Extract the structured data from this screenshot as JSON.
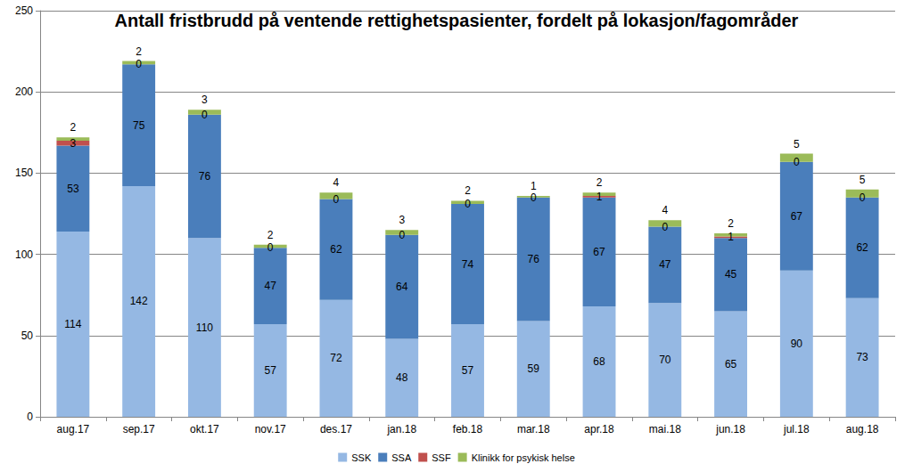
{
  "chart_data": {
    "type": "bar",
    "title": "Antall fristbrudd på ventende rettighetspasienter, fordelt på lokasjon/fagområder",
    "categories": [
      "aug.17",
      "sep.17",
      "okt.17",
      "nov.17",
      "des.17",
      "jan.18",
      "feb.18",
      "mar.18",
      "apr.18",
      "mai.18",
      "jun.18",
      "jul.18",
      "aug.18"
    ],
    "series": [
      {
        "name": "SSK",
        "color": "#95b8e3",
        "values": [
          114,
          142,
          110,
          57,
          72,
          48,
          57,
          59,
          68,
          70,
          65,
          90,
          73
        ]
      },
      {
        "name": "SSA",
        "color": "#4a7ebb",
        "values": [
          53,
          75,
          76,
          47,
          62,
          64,
          74,
          76,
          67,
          47,
          45,
          67,
          62
        ]
      },
      {
        "name": "SSF",
        "color": "#c0504d",
        "values": [
          3,
          0,
          0,
          0,
          0,
          0,
          0,
          0,
          1,
          0,
          1,
          0,
          0
        ]
      },
      {
        "name": "Klinikk for psykisk helse",
        "color": "#9bbb59",
        "values": [
          2,
          2,
          3,
          2,
          4,
          3,
          2,
          1,
          2,
          4,
          2,
          5,
          5
        ]
      }
    ],
    "stacked": true,
    "data_labels": true,
    "grid": true,
    "legend": "bottom",
    "ylim": [
      0,
      250
    ],
    "yticks": [
      0,
      50,
      100,
      150,
      200,
      250
    ]
  }
}
